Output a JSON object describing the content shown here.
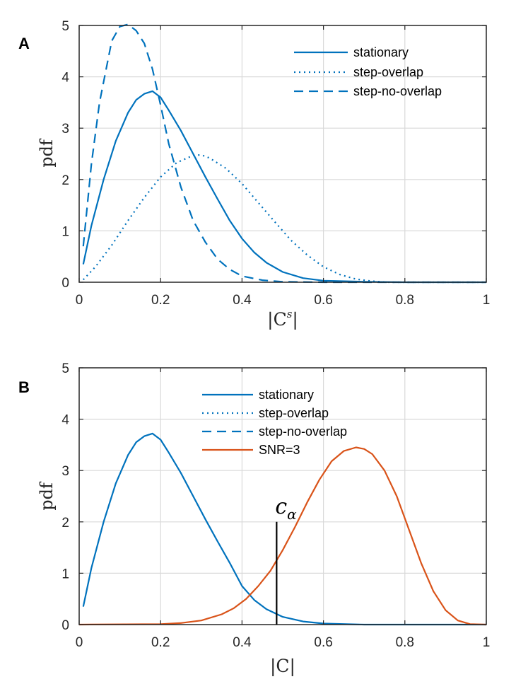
{
  "colors": {
    "blue": "#0072BD",
    "orange": "#D95319",
    "grid": "#d9d9d9",
    "axis": "#262626"
  },
  "chart_data": [
    {
      "type": "line",
      "panel": "A",
      "xlabel": "|C^s|",
      "xlabel_base": "|C",
      "xlabel_sup": "s",
      "xlabel_end": "|",
      "ylabel": "pdf",
      "xlim": [
        0,
        1
      ],
      "ylim": [
        0,
        5
      ],
      "xticks": [
        0,
        0.2,
        0.4,
        0.6,
        0.8,
        1
      ],
      "xtick_labels": [
        "0",
        "0.2",
        "0.4",
        "0.6",
        "0.8",
        "1"
      ],
      "yticks": [
        0,
        1,
        2,
        3,
        4,
        5
      ],
      "ytick_labels": [
        "0",
        "1",
        "2",
        "3",
        "4",
        "5"
      ],
      "grid": true,
      "legend_position": "top-right",
      "series": [
        {
          "name": "stationary",
          "style": "solid",
          "color": "#0072BD",
          "x": [
            0.01,
            0.03,
            0.06,
            0.09,
            0.12,
            0.14,
            0.16,
            0.18,
            0.2,
            0.22,
            0.25,
            0.28,
            0.31,
            0.34,
            0.37,
            0.4,
            0.43,
            0.46,
            0.5,
            0.55,
            0.6,
            0.7,
            0.8,
            1.0
          ],
          "y": [
            0.35,
            1.1,
            2.0,
            2.75,
            3.3,
            3.55,
            3.67,
            3.72,
            3.6,
            3.35,
            2.95,
            2.5,
            2.05,
            1.62,
            1.2,
            0.85,
            0.58,
            0.38,
            0.2,
            0.08,
            0.03,
            0.01,
            0.0,
            0.0
          ]
        },
        {
          "name": "step-overlap",
          "style": "dotted",
          "color": "#0072BD",
          "x": [
            0.01,
            0.04,
            0.08,
            0.12,
            0.16,
            0.2,
            0.24,
            0.28,
            0.3,
            0.32,
            0.36,
            0.4,
            0.44,
            0.48,
            0.52,
            0.56,
            0.6,
            0.64,
            0.68,
            0.72,
            0.76,
            0.8,
            1.0
          ],
          "y": [
            0.05,
            0.3,
            0.72,
            1.2,
            1.65,
            2.05,
            2.33,
            2.47,
            2.48,
            2.42,
            2.22,
            1.92,
            1.55,
            1.18,
            0.82,
            0.53,
            0.3,
            0.15,
            0.06,
            0.02,
            0.0,
            0.0,
            0.0
          ]
        },
        {
          "name": "step-no-overlap",
          "style": "dashed",
          "color": "#0072BD",
          "x": [
            0.01,
            0.03,
            0.05,
            0.08,
            0.1,
            0.12,
            0.14,
            0.16,
            0.18,
            0.2,
            0.22,
            0.25,
            0.28,
            0.31,
            0.34,
            0.37,
            0.4,
            0.45,
            0.5,
            0.6,
            1.0
          ],
          "y": [
            0.7,
            2.3,
            3.5,
            4.7,
            4.98,
            5.02,
            4.9,
            4.65,
            4.15,
            3.45,
            2.7,
            1.85,
            1.2,
            0.78,
            0.45,
            0.25,
            0.12,
            0.04,
            0.01,
            0.0,
            0.0
          ]
        }
      ]
    },
    {
      "type": "line",
      "panel": "B",
      "xlabel": "|C|",
      "ylabel": "pdf",
      "xlim": [
        0,
        1
      ],
      "ylim": [
        0,
        5
      ],
      "xticks": [
        0,
        0.2,
        0.4,
        0.6,
        0.8,
        1
      ],
      "xtick_labels": [
        "0",
        "0.2",
        "0.4",
        "0.6",
        "0.8",
        "1"
      ],
      "yticks": [
        0,
        1,
        2,
        3,
        4,
        5
      ],
      "ytick_labels": [
        "0",
        "1",
        "2",
        "3",
        "4",
        "5"
      ],
      "grid": true,
      "legend_position": "top-center",
      "legend_entries": [
        "stationary",
        "step-overlap",
        "step-no-overlap",
        "SNR=3"
      ],
      "series": [
        {
          "name": "stationary",
          "style": "solid",
          "color": "#0072BD",
          "x": [
            0.01,
            0.03,
            0.06,
            0.09,
            0.12,
            0.14,
            0.16,
            0.18,
            0.2,
            0.22,
            0.25,
            0.28,
            0.31,
            0.34,
            0.37,
            0.4,
            0.43,
            0.46,
            0.5,
            0.55,
            0.6,
            0.7,
            0.8,
            1.0
          ],
          "y": [
            0.35,
            1.1,
            2.0,
            2.75,
            3.3,
            3.55,
            3.67,
            3.72,
            3.6,
            3.35,
            2.95,
            2.5,
            2.05,
            1.62,
            1.2,
            0.75,
            0.48,
            0.3,
            0.15,
            0.06,
            0.02,
            0.0,
            0.0,
            0.0
          ]
        },
        {
          "name": "SNR=3",
          "style": "solid",
          "color": "#D95319",
          "x": [
            0.0,
            0.2,
            0.25,
            0.3,
            0.35,
            0.38,
            0.41,
            0.44,
            0.47,
            0.5,
            0.53,
            0.56,
            0.59,
            0.62,
            0.65,
            0.68,
            0.7,
            0.72,
            0.75,
            0.78,
            0.81,
            0.84,
            0.87,
            0.9,
            0.93,
            0.96,
            1.0
          ],
          "y": [
            0.0,
            0.01,
            0.03,
            0.08,
            0.2,
            0.32,
            0.5,
            0.75,
            1.05,
            1.45,
            1.9,
            2.38,
            2.82,
            3.18,
            3.38,
            3.45,
            3.42,
            3.32,
            3.0,
            2.5,
            1.85,
            1.2,
            0.65,
            0.28,
            0.08,
            0.01,
            0.0
          ]
        }
      ],
      "annotations": [
        {
          "label": "c",
          "subscript": "α",
          "x": 0.485,
          "y_bottom": 0,
          "y_top": 2.0
        }
      ]
    }
  ]
}
